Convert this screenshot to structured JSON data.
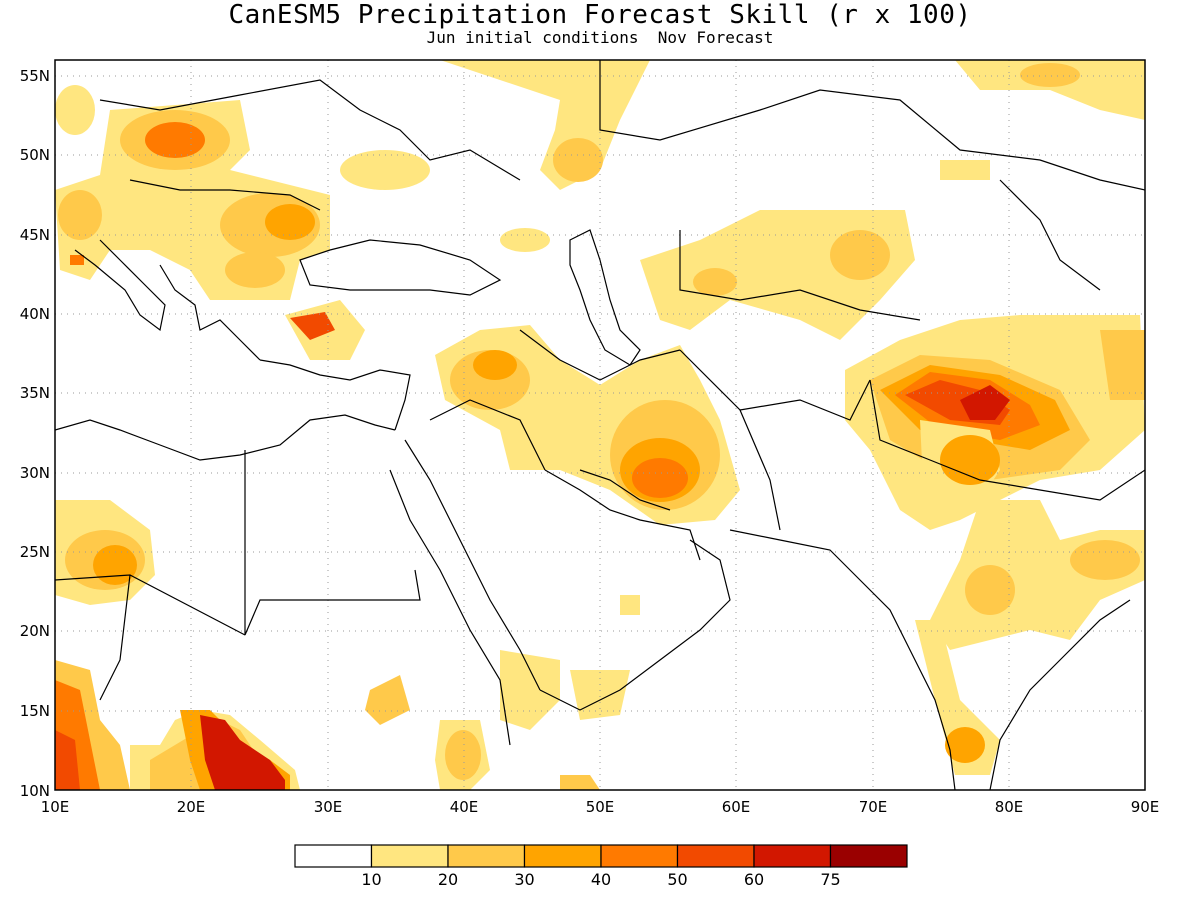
{
  "title": "CanESM5 Precipitation Forecast Skill (r x 100)",
  "subtitle": "Jun initial conditions  Nov Forecast",
  "map": {
    "lon_range": [
      10,
      90
    ],
    "lat_range": [
      10,
      56
    ],
    "x_ticks": [
      "10E",
      "20E",
      "30E",
      "40E",
      "50E",
      "60E",
      "70E",
      "80E",
      "90E"
    ],
    "y_ticks": [
      "10N",
      "15N",
      "20N",
      "25N",
      "30N",
      "35N",
      "40N",
      "45N",
      "50N",
      "55N"
    ],
    "grid": "dotted"
  },
  "colorbar": {
    "labels": [
      "10",
      "20",
      "30",
      "40",
      "50",
      "60",
      "75"
    ],
    "colors": [
      "#ffffff",
      "#ffe680",
      "#ffc94a",
      "#ffa400",
      "#ff7a00",
      "#f24a00",
      "#d21700",
      "#9a0000"
    ]
  }
}
